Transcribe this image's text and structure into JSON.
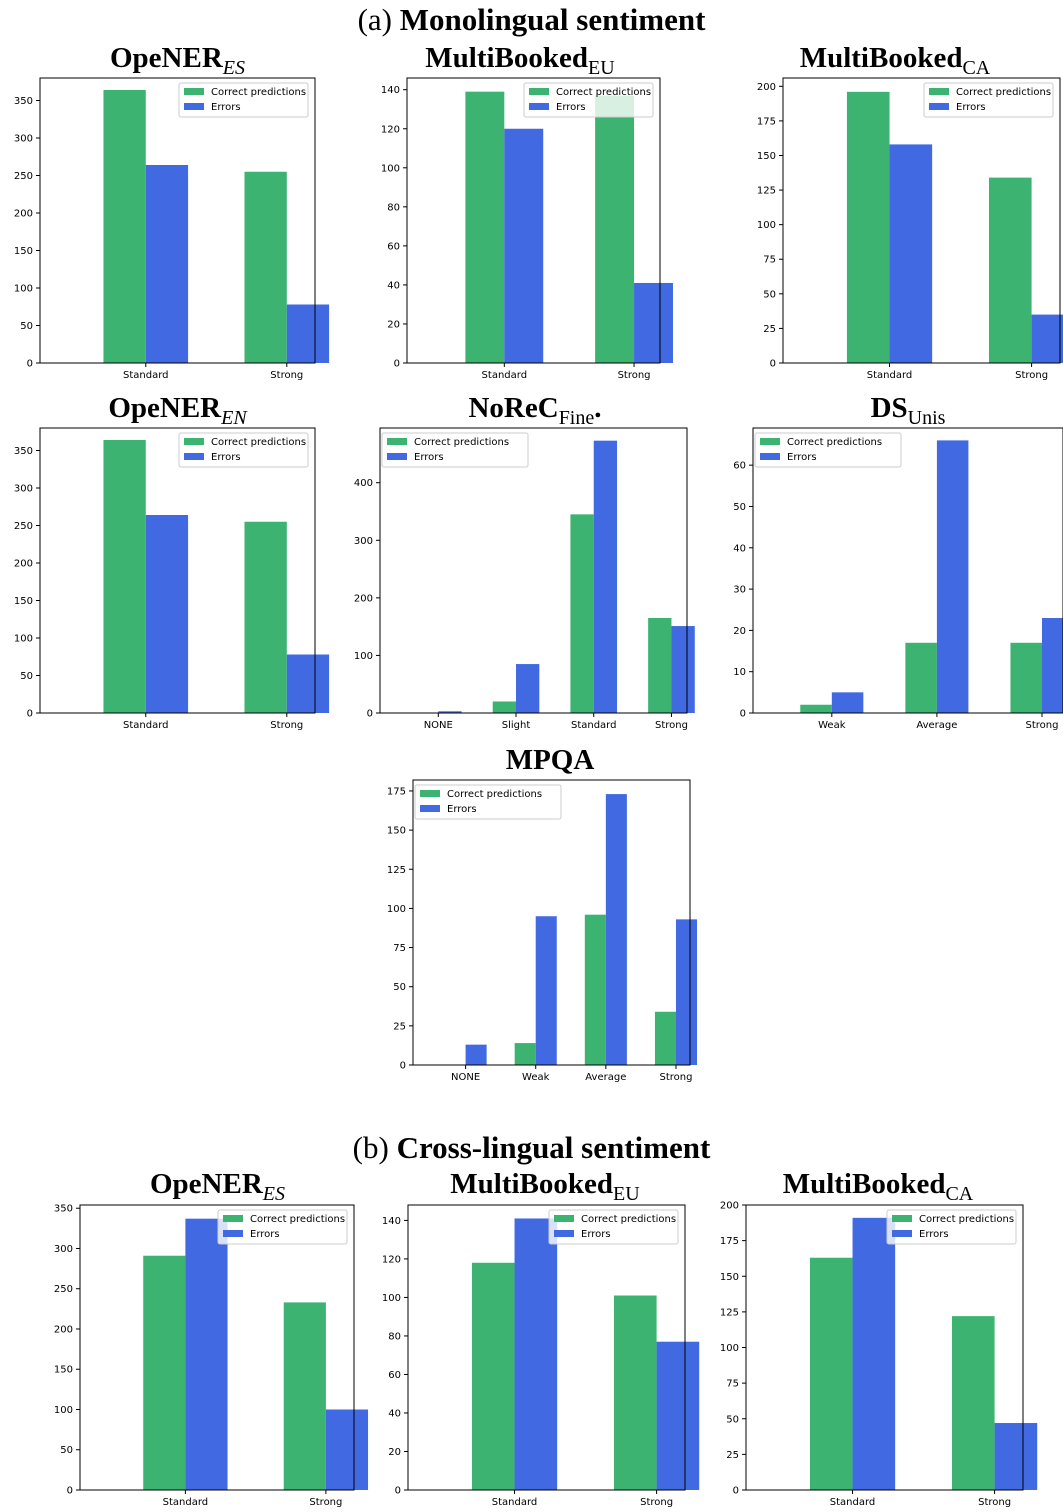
{
  "sections": {
    "mono": {
      "label": "(a)",
      "text": "Monolingual sentiment"
    },
    "cross": {
      "label": "(b)",
      "text": "Cross-lingual sentiment"
    }
  },
  "legend": {
    "correct": "Correct predictions",
    "errors": "Errors"
  },
  "colors": {
    "correct": "#3cb371",
    "errors": "#4169e1"
  },
  "chart_data": [
    {
      "id": "mono-opener-es",
      "type": "bar",
      "title": {
        "main": "OpeNER",
        "sub": "ES",
        "sub_italic": true
      },
      "categories": [
        "Standard",
        "Strong"
      ],
      "series": [
        {
          "name": "Correct predictions",
          "values": [
            364,
            255
          ]
        },
        {
          "name": "Errors",
          "values": [
            264,
            78
          ]
        }
      ],
      "ylim": [
        0,
        380
      ],
      "yticks": [
        0,
        50,
        100,
        150,
        200,
        250,
        300,
        350
      ],
      "legend_position": "top-right"
    },
    {
      "id": "mono-multibooked-eu",
      "type": "bar",
      "title": {
        "main": "MultiBooked",
        "sub": "EU",
        "sub_italic": false
      },
      "categories": [
        "Standard",
        "Strong"
      ],
      "series": [
        {
          "name": "Correct predictions",
          "values": [
            139,
            137
          ]
        },
        {
          "name": "Errors",
          "values": [
            120,
            41
          ]
        }
      ],
      "ylim": [
        0,
        146
      ],
      "yticks": [
        0,
        20,
        40,
        60,
        80,
        100,
        120,
        140
      ],
      "legend_position": "top-right"
    },
    {
      "id": "mono-multibooked-ca",
      "type": "bar",
      "title": {
        "main": "MultiBooked",
        "sub": "CA",
        "sub_italic": false
      },
      "categories": [
        "Standard",
        "Strong"
      ],
      "series": [
        {
          "name": "Correct predictions",
          "values": [
            196,
            134
          ]
        },
        {
          "name": "Errors",
          "values": [
            158,
            35
          ]
        }
      ],
      "ylim": [
        0,
        206
      ],
      "yticks": [
        0,
        25,
        50,
        75,
        100,
        125,
        150,
        175,
        200
      ],
      "legend_position": "top-right"
    },
    {
      "id": "mono-opener-en",
      "type": "bar",
      "title": {
        "main": "OpeNER",
        "sub": "EN",
        "sub_italic": true
      },
      "categories": [
        "Standard",
        "Strong"
      ],
      "series": [
        {
          "name": "Correct predictions",
          "values": [
            364,
            255
          ]
        },
        {
          "name": "Errors",
          "values": [
            264,
            78
          ]
        }
      ],
      "ylim": [
        0,
        380
      ],
      "yticks": [
        0,
        50,
        100,
        150,
        200,
        250,
        300,
        350
      ],
      "legend_position": "top-right"
    },
    {
      "id": "mono-norec",
      "type": "bar",
      "title": {
        "main": "NoReC",
        "sub": "Fine",
        "sub_italic": false,
        "suffix": "."
      },
      "categories": [
        "NONE",
        "Slight",
        "Standard",
        "Strong"
      ],
      "series": [
        {
          "name": "Correct predictions",
          "values": [
            0,
            20,
            345,
            165
          ]
        },
        {
          "name": "Errors",
          "values": [
            3,
            85,
            473,
            151
          ]
        }
      ],
      "ylim": [
        0,
        495
      ],
      "yticks": [
        0,
        100,
        200,
        300,
        400
      ],
      "legend_position": "top-left"
    },
    {
      "id": "mono-ds-unis",
      "type": "bar",
      "title": {
        "main": "DS",
        "sub": "Unis",
        "sub_italic": false
      },
      "categories": [
        "Weak",
        "Average",
        "Strong"
      ],
      "series": [
        {
          "name": "Correct predictions",
          "values": [
            2,
            17,
            17
          ]
        },
        {
          "name": "Errors",
          "values": [
            5,
            66,
            23
          ]
        }
      ],
      "ylim": [
        0,
        69
      ],
      "yticks": [
        0,
        10,
        20,
        30,
        40,
        50,
        60
      ],
      "legend_position": "top-left"
    },
    {
      "id": "mono-mpqa",
      "type": "bar",
      "title": {
        "main": "MPQA",
        "sub": "",
        "sub_italic": false
      },
      "categories": [
        "NONE",
        "Weak",
        "Average",
        "Strong"
      ],
      "series": [
        {
          "name": "Correct predictions",
          "values": [
            0,
            14,
            96,
            34
          ]
        },
        {
          "name": "Errors",
          "values": [
            13,
            95,
            173,
            93
          ]
        }
      ],
      "ylim": [
        0,
        182
      ],
      "yticks": [
        0,
        25,
        50,
        75,
        100,
        125,
        150,
        175
      ],
      "legend_position": "top-left"
    },
    {
      "id": "cross-opener-es",
      "type": "bar",
      "title": {
        "main": "OpeNER",
        "sub": "ES",
        "sub_italic": true
      },
      "categories": [
        "Standard",
        "Strong"
      ],
      "series": [
        {
          "name": "Correct predictions",
          "values": [
            291,
            233
          ]
        },
        {
          "name": "Errors",
          "values": [
            337,
            100
          ]
        }
      ],
      "ylim": [
        0,
        354
      ],
      "yticks": [
        0,
        50,
        100,
        150,
        200,
        250,
        300,
        350
      ],
      "legend_position": "top-right"
    },
    {
      "id": "cross-multibooked-eu",
      "type": "bar",
      "title": {
        "main": "MultiBooked",
        "sub": "EU",
        "sub_italic": false
      },
      "categories": [
        "Standard",
        "Strong"
      ],
      "series": [
        {
          "name": "Correct predictions",
          "values": [
            118,
            101
          ]
        },
        {
          "name": "Errors",
          "values": [
            141,
            77
          ]
        }
      ],
      "ylim": [
        0,
        148
      ],
      "yticks": [
        0,
        20,
        40,
        60,
        80,
        100,
        120,
        140
      ],
      "legend_position": "top-right"
    },
    {
      "id": "cross-multibooked-ca",
      "type": "bar",
      "title": {
        "main": "MultiBooked",
        "sub": "CA",
        "sub_italic": false
      },
      "categories": [
        "Standard",
        "Strong"
      ],
      "series": [
        {
          "name": "Correct predictions",
          "values": [
            163,
            122
          ]
        },
        {
          "name": "Errors",
          "values": [
            191,
            47
          ]
        }
      ],
      "ylim": [
        0,
        200
      ],
      "yticks": [
        0,
        25,
        50,
        75,
        100,
        125,
        150,
        175,
        200
      ],
      "legend_position": "top-right"
    }
  ]
}
